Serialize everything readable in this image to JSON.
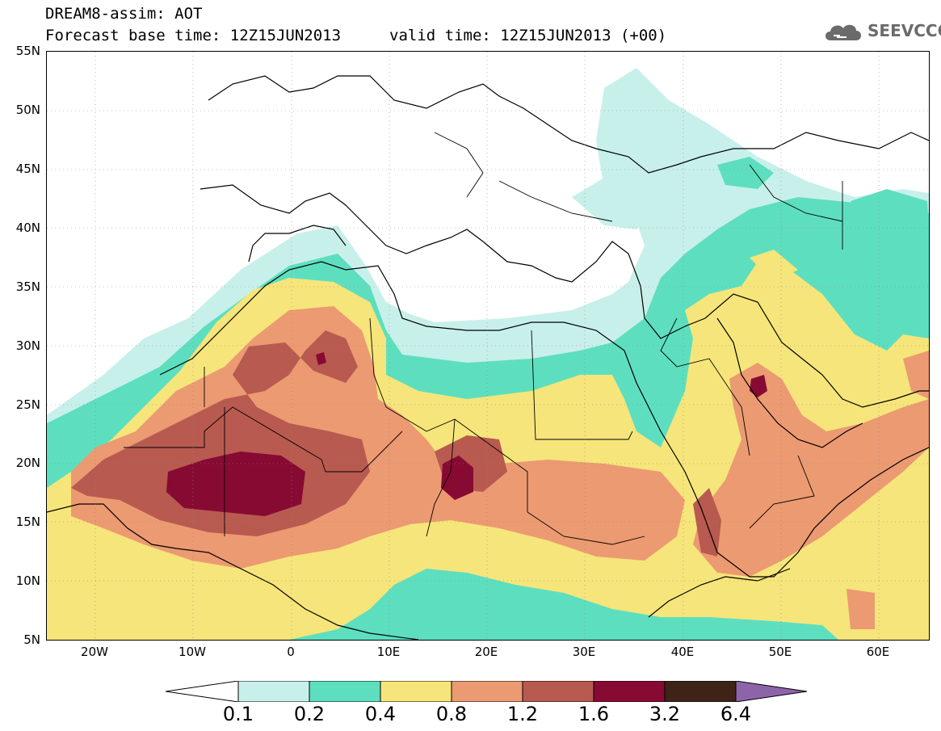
{
  "header": {
    "line1": "DREAM8-assim: AOT",
    "line2a": "Forecast base time: 12Z15JUN2013",
    "line2b": "valid time: 12Z15JUN2013 (+00)"
  },
  "logo": {
    "text": "SEEVCCC",
    "icon": "cloud-icon"
  },
  "axes": {
    "lat_labels": [
      "55N",
      "50N",
      "45N",
      "40N",
      "35N",
      "30N",
      "25N",
      "20N",
      "15N",
      "10N",
      "5N"
    ],
    "lon_labels": [
      "20W",
      "10W",
      "0",
      "10E",
      "20E",
      "30E",
      "40E",
      "50E",
      "60E"
    ],
    "lat_range": [
      5,
      55
    ],
    "lon_range": [
      -25,
      65
    ]
  },
  "colorbar": {
    "ticks": [
      "0.1",
      "0.2",
      "0.4",
      "0.8",
      "1.2",
      "1.6",
      "3.2",
      "6.4"
    ],
    "colors": [
      "#ffffff",
      "#c8f0ea",
      "#5ddfbf",
      "#f6e57a",
      "#ec9a72",
      "#b85a50",
      "#870a33",
      "#3d2416",
      "#8e64a8"
    ]
  }
}
